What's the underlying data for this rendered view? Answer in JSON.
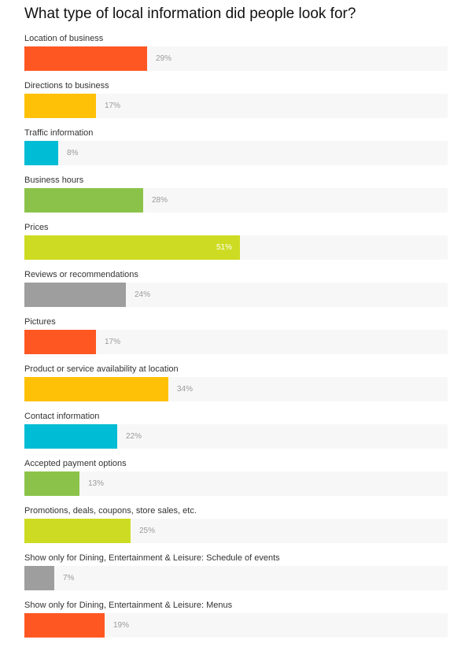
{
  "title": "What type of local information did people look for?",
  "chart_data": {
    "type": "bar",
    "orientation": "horizontal",
    "title": "What type of local information did people look for?",
    "xlim": [
      0,
      100
    ],
    "unit": "%",
    "categories": [
      "Location of business",
      "Directions to business",
      "Traffic information",
      "Business hours",
      "Prices",
      "Reviews or recommendations",
      "Pictures",
      "Product or service availability at location",
      "Contact information",
      "Accepted payment options",
      "Promotions, deals, coupons, store sales, etc.",
      "Show only for Dining, Entertainment & Leisure: Schedule of events",
      "Show only for Dining, Entertainment & Leisure: Menus"
    ],
    "values": [
      29,
      17,
      8,
      28,
      51,
      24,
      17,
      34,
      22,
      13,
      25,
      7,
      19
    ],
    "value_labels": [
      "29%",
      "17%",
      "8%",
      "28%",
      "51%",
      "24%",
      "17%",
      "34%",
      "22%",
      "13%",
      "25%",
      "7%",
      "19%"
    ],
    "colors": [
      "#ff5722",
      "#ffc107",
      "#00bcd4",
      "#8bc34a",
      "#cddc22",
      "#9e9e9e",
      "#ff5722",
      "#ffc107",
      "#00bcd4",
      "#8bc34a",
      "#cddc22",
      "#9e9e9e",
      "#ff5722"
    ],
    "track_color": "#f7f7f8",
    "grid": false,
    "legend": "none"
  }
}
